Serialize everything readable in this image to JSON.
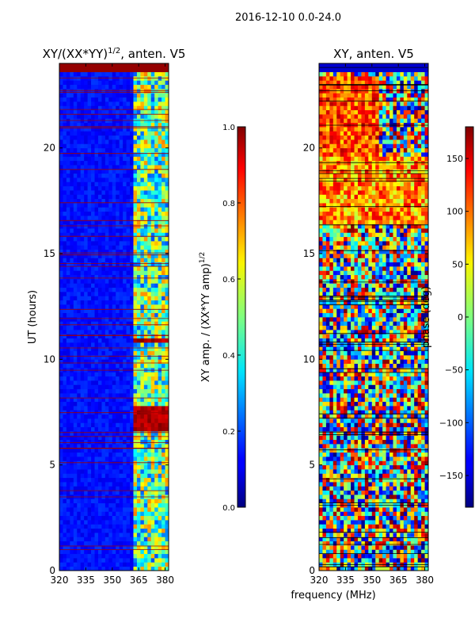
{
  "chart_data": {
    "type": "heatmap",
    "suptitle": "2016-12-10 0.0-24.0",
    "xlabel": "frequency (MHz)",
    "panels": [
      {
        "title": "XY/(XX*YY)",
        "title_sup": "1/2",
        "title_tail": ", anten. V5",
        "ylabel": "UT (hours)",
        "xlim": [
          320,
          382
        ],
        "ylim": [
          0,
          24
        ],
        "xticks": [
          320,
          335,
          350,
          365,
          380
        ],
        "yticks": [
          0,
          5,
          10,
          15,
          20
        ],
        "colorbar": {
          "label": "XY amp. / (XX*YY amp)",
          "label_sup": "1/2",
          "range": [
            0.0,
            1.0
          ],
          "ticks": [
            0.0,
            0.2,
            0.4,
            0.6,
            0.8,
            1.0
          ],
          "tick_labels": [
            "0.0",
            "0.2",
            "0.4",
            "0.6",
            "0.8",
            "1.0"
          ]
        }
      },
      {
        "title": "XY, anten. V5",
        "ylabel": "",
        "xlim": [
          320,
          382
        ],
        "ylim": [
          0,
          24
        ],
        "xticks": [
          320,
          335,
          350,
          365,
          380
        ],
        "yticks": [
          0,
          5,
          10,
          15,
          20
        ],
        "colorbar": {
          "label": "phase (deg)",
          "range": [
            -180,
            180
          ],
          "ticks": [
            -150,
            -100,
            -50,
            0,
            50,
            100,
            150
          ],
          "tick_labels": [
            "−150",
            "−100",
            "−50",
            "0",
            "50",
            "100",
            "150"
          ]
        }
      }
    ]
  }
}
